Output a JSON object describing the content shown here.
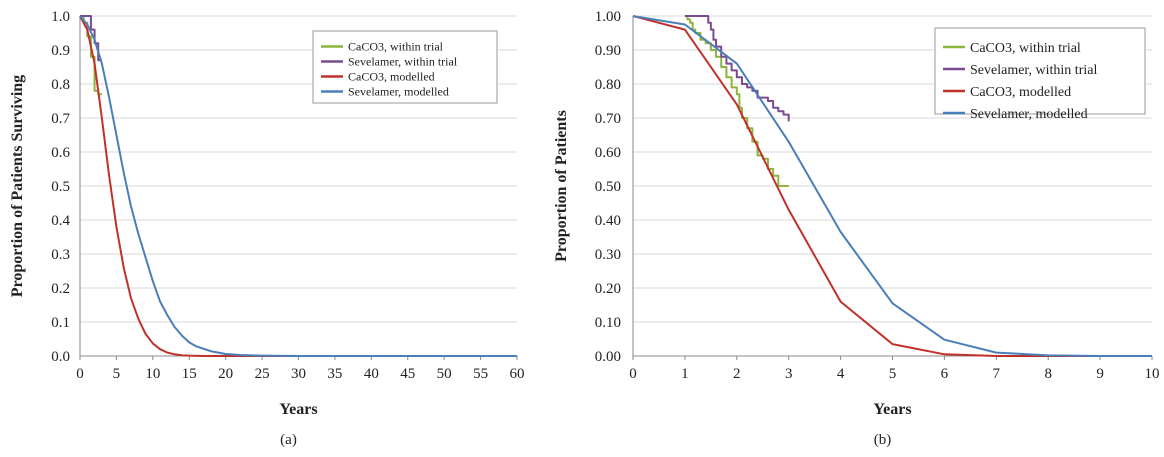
{
  "chart_data": [
    {
      "panel": "(a)",
      "type": "line",
      "xlabel": "Years",
      "ylabel": "Proportion of Patients Surviving",
      "xlim": [
        0,
        60
      ],
      "ylim": [
        0,
        1.0
      ],
      "xticks": [
        "0",
        "5",
        "10",
        "15",
        "20",
        "25",
        "30",
        "35",
        "40",
        "45",
        "50",
        "55",
        "60"
      ],
      "yticks": [
        "0.0",
        "0.1",
        "0.2",
        "0.3",
        "0.4",
        "0.5",
        "0.6",
        "0.7",
        "0.8",
        "0.9",
        "1.0"
      ],
      "grid": true,
      "legend_position": "top-right",
      "series": [
        {
          "name": "CaCO3, within trial",
          "color": "#8db43c",
          "step": true,
          "x": [
            0,
            0.5,
            1,
            1.5,
            2,
            2.5,
            3
          ],
          "y": [
            1.0,
            0.98,
            0.94,
            0.88,
            0.78,
            0.77,
            0.77
          ]
        },
        {
          "name": "Sevelamer, within trial",
          "color": "#7b4a92",
          "step": true,
          "x": [
            0,
            1.0,
            1.5,
            2.0,
            2.5,
            3.0
          ],
          "y": [
            1.0,
            1.0,
            0.96,
            0.92,
            0.87,
            0.87
          ]
        },
        {
          "name": "CaCO3, modelled",
          "color": "#c0312b",
          "step": false,
          "x": [
            0,
            1,
            2,
            3,
            4,
            5,
            6,
            7,
            8,
            9,
            10,
            11,
            12,
            13,
            14,
            15,
            17,
            20,
            25,
            30,
            60
          ],
          "y": [
            1.0,
            0.96,
            0.86,
            0.7,
            0.53,
            0.38,
            0.26,
            0.17,
            0.11,
            0.065,
            0.037,
            0.02,
            0.01,
            0.005,
            0.002,
            0.001,
            0.0,
            0.0,
            0.0,
            0.0,
            0.0
          ]
        },
        {
          "name": "Sevelamer, modelled",
          "color": "#4a7eb8",
          "step": false,
          "x": [
            0,
            1,
            2,
            3,
            4,
            5,
            6,
            7,
            8,
            9,
            10,
            11,
            12,
            13,
            14,
            15,
            16,
            18,
            20,
            22,
            25,
            30,
            60
          ],
          "y": [
            1.0,
            0.975,
            0.93,
            0.86,
            0.76,
            0.65,
            0.54,
            0.44,
            0.36,
            0.29,
            0.22,
            0.16,
            0.12,
            0.085,
            0.06,
            0.04,
            0.028,
            0.014,
            0.006,
            0.003,
            0.001,
            0.0,
            0.0
          ]
        }
      ]
    },
    {
      "panel": "(b)",
      "type": "line",
      "xlabel": "Years",
      "ylabel": "Proportion of Patients",
      "xlim": [
        0,
        10
      ],
      "ylim": [
        0,
        1.0
      ],
      "xticks": [
        "0",
        "1",
        "2",
        "3",
        "4",
        "5",
        "6",
        "7",
        "8",
        "9",
        "10"
      ],
      "yticks": [
        "0.00",
        "0.10",
        "0.20",
        "0.30",
        "0.40",
        "0.50",
        "0.60",
        "0.70",
        "0.80",
        "0.90",
        "1.00"
      ],
      "grid": true,
      "legend_position": "top-right",
      "series": [
        {
          "name": "CaCO3, within trial",
          "color": "#8db43c",
          "step": true,
          "x": [
            1.0,
            1.05,
            1.1,
            1.15,
            1.2,
            1.3,
            1.4,
            1.5,
            1.6,
            1.7,
            1.8,
            1.9,
            2.0,
            2.05,
            2.1,
            2.2,
            2.3,
            2.4,
            2.5,
            2.6,
            2.7,
            2.8,
            2.9,
            3.0
          ],
          "y": [
            1.0,
            0.99,
            0.98,
            0.96,
            0.95,
            0.93,
            0.92,
            0.9,
            0.88,
            0.85,
            0.82,
            0.79,
            0.77,
            0.73,
            0.7,
            0.67,
            0.63,
            0.59,
            0.58,
            0.55,
            0.53,
            0.5,
            0.5,
            0.5
          ]
        },
        {
          "name": "Sevelamer, within trial",
          "color": "#7b4a92",
          "step": true,
          "x": [
            1.0,
            1.4,
            1.45,
            1.5,
            1.55,
            1.6,
            1.7,
            1.8,
            1.9,
            2.0,
            2.1,
            2.2,
            2.3,
            2.4,
            2.5,
            2.6,
            2.7,
            2.8,
            2.9,
            3.0
          ],
          "y": [
            1.0,
            1.0,
            0.98,
            0.96,
            0.93,
            0.91,
            0.88,
            0.86,
            0.84,
            0.82,
            0.8,
            0.79,
            0.78,
            0.76,
            0.76,
            0.75,
            0.73,
            0.72,
            0.71,
            0.69
          ]
        },
        {
          "name": "CaCO3, modelled",
          "color": "#c0312b",
          "step": false,
          "x": [
            0,
            1,
            2,
            3,
            4,
            5,
            6,
            7,
            8,
            9,
            10
          ],
          "y": [
            1.0,
            0.96,
            0.74,
            0.43,
            0.16,
            0.035,
            0.005,
            0.0,
            0.0,
            0.0,
            0.0
          ]
        },
        {
          "name": "Sevelamer, modelled",
          "color": "#4a7eb8",
          "step": false,
          "x": [
            0,
            1,
            2,
            3,
            4,
            5,
            6,
            7,
            8,
            9,
            10
          ],
          "y": [
            1.0,
            0.975,
            0.86,
            0.63,
            0.365,
            0.155,
            0.048,
            0.01,
            0.002,
            0.0,
            0.0
          ]
        }
      ]
    }
  ]
}
